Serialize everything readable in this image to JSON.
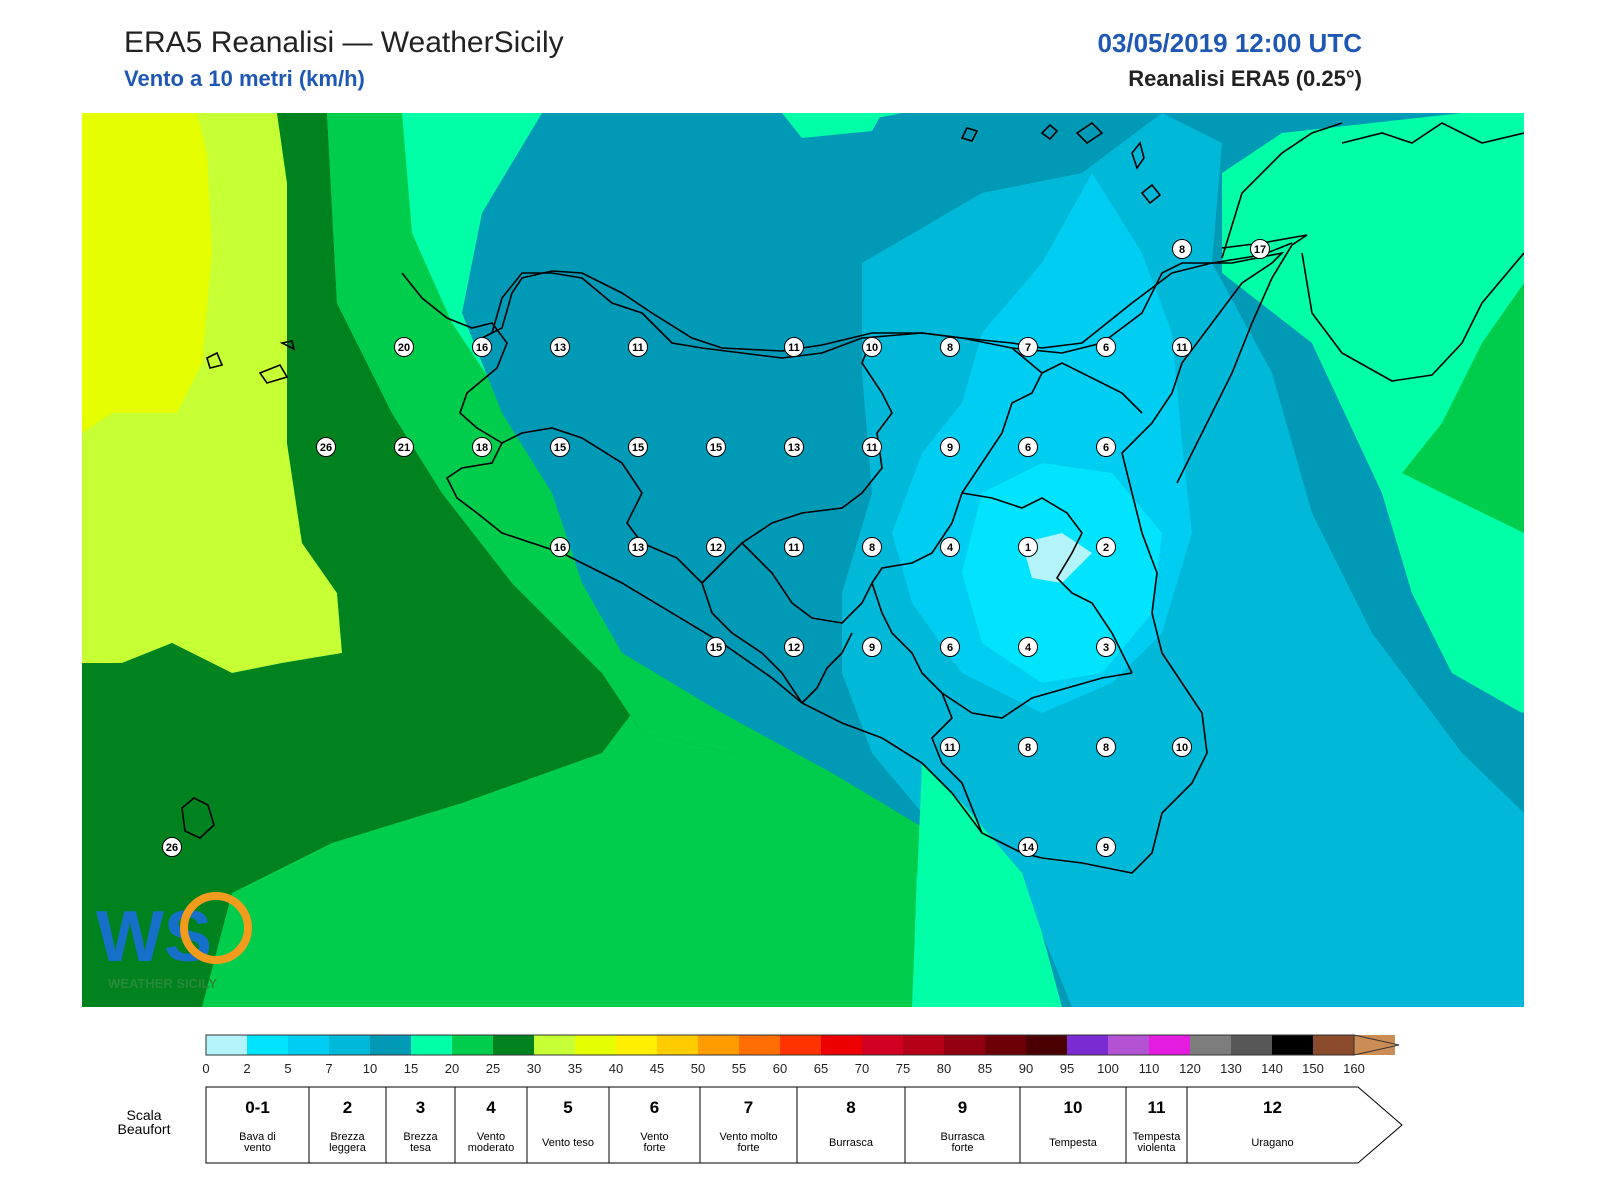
{
  "header": {
    "title": "ERA5 Reanalisi — WeatherSicily",
    "subtitle": "Vento a 10 metri (km/h)",
    "datetime": "03/05/2019 12:00 UTC",
    "model": "Reanalisi ERA5 (0.25°)"
  },
  "map_data": {
    "region": "Sicily",
    "variable": "wind speed at 10 m",
    "unit": "km/h",
    "stations": [
      {
        "value": "8"
      },
      {
        "value": "17"
      },
      {
        "value": "20"
      },
      {
        "value": "16"
      },
      {
        "value": "13"
      },
      {
        "value": "11"
      },
      {
        "value": "11"
      },
      {
        "value": "10"
      },
      {
        "value": "8"
      },
      {
        "value": "7"
      },
      {
        "value": "6"
      },
      {
        "value": "11"
      },
      {
        "value": "26"
      },
      {
        "value": "21"
      },
      {
        "value": "18"
      },
      {
        "value": "15"
      },
      {
        "value": "15"
      },
      {
        "value": "15"
      },
      {
        "value": "13"
      },
      {
        "value": "11"
      },
      {
        "value": "9"
      },
      {
        "value": "6"
      },
      {
        "value": "6"
      },
      {
        "value": "16"
      },
      {
        "value": "13"
      },
      {
        "value": "12"
      },
      {
        "value": "11"
      },
      {
        "value": "8"
      },
      {
        "value": "4"
      },
      {
        "value": "1"
      },
      {
        "value": "2"
      },
      {
        "value": "15"
      },
      {
        "value": "12"
      },
      {
        "value": "9"
      },
      {
        "value": "6"
      },
      {
        "value": "4"
      },
      {
        "value": "3"
      },
      {
        "value": "11"
      },
      {
        "value": "8"
      },
      {
        "value": "8"
      },
      {
        "value": "10"
      },
      {
        "value": "14"
      },
      {
        "value": "9"
      },
      {
        "value": "26"
      }
    ]
  },
  "colorbar": {
    "ticks": [
      "0",
      "2",
      "5",
      "7",
      "10",
      "15",
      "20",
      "25",
      "30",
      "35",
      "40",
      "45",
      "50",
      "55",
      "60",
      "65",
      "70",
      "75",
      "80",
      "85",
      "90",
      "95",
      "100",
      "110",
      "120",
      "130",
      "140",
      "150",
      "160"
    ],
    "colors": [
      "#b3f4fb",
      "#00e4ff",
      "#00cdf2",
      "#00b9d8",
      "#0099b6",
      "#00ffa6",
      "#00cd4b",
      "#00821f",
      "#c6ff33",
      "#e6ff00",
      "#ffef00",
      "#ffcc00",
      "#ff9c00",
      "#ff6e00",
      "#ff3300",
      "#ee0000",
      "#d10022",
      "#b50018",
      "#920010",
      "#6c0006",
      "#4a0000",
      "#7a2bd1",
      "#b452d4",
      "#e41ce0",
      "#7d7d7d",
      "#575757",
      "#000000",
      "#8b4a2b",
      "#cc8c55"
    ]
  },
  "beaufort": {
    "label_line1": "Scala",
    "label_line2": "Beaufort",
    "classes": [
      {
        "num": "0-1",
        "desc1": "Bava di",
        "desc2": "vento"
      },
      {
        "num": "2",
        "desc1": "Brezza",
        "desc2": "leggera"
      },
      {
        "num": "3",
        "desc1": "Brezza",
        "desc2": "tesa"
      },
      {
        "num": "4",
        "desc1": "Vento",
        "desc2": "moderato"
      },
      {
        "num": "5",
        "desc1": "Vento teso",
        "desc2": ""
      },
      {
        "num": "6",
        "desc1": "Vento",
        "desc2": "forte"
      },
      {
        "num": "7",
        "desc1": "Vento molto",
        "desc2": "forte"
      },
      {
        "num": "8",
        "desc1": "Burrasca",
        "desc2": ""
      },
      {
        "num": "9",
        "desc1": "Burrasca",
        "desc2": "forte"
      },
      {
        "num": "10",
        "desc1": "Tempesta",
        "desc2": ""
      },
      {
        "num": "11",
        "desc1": "Tempesta",
        "desc2": "violenta"
      },
      {
        "num": "12",
        "desc1": "Uragano",
        "desc2": ""
      }
    ]
  },
  "logo": {
    "text": "WEATHER SICILY"
  }
}
